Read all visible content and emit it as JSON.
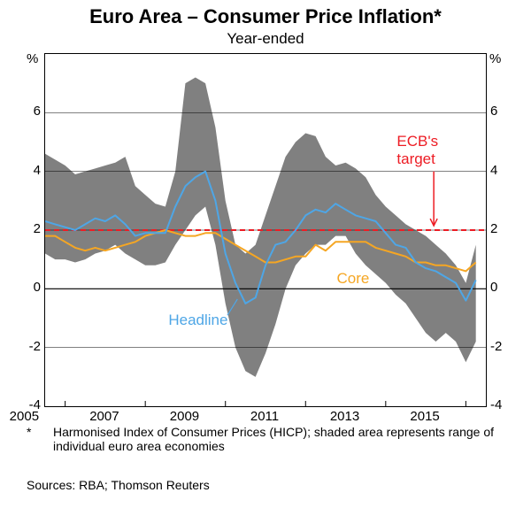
{
  "title": "Euro Area – Consumer Price Inflation*",
  "subtitle": "Year-ended",
  "footnote_marker": "*",
  "footnote": "Harmonised Index of Consumer Prices (HICP); shaded area represents range of individual euro area economies",
  "sources": "Sources:  RBA; Thomson Reuters",
  "y_unit": "%",
  "chart": {
    "type": "line",
    "xlim": [
      2004.5,
      2015.5
    ],
    "ylim": [
      -4,
      8
    ],
    "ytick_step": 2,
    "yticks": [
      -4,
      -2,
      0,
      2,
      4,
      6
    ],
    "xticks": [
      2005,
      2007,
      2009,
      2011,
      2013,
      2015
    ],
    "background_color": "#ffffff",
    "grid_color": "#000000",
    "grid_width": 0.5,
    "zero_line_color": "#000000",
    "zero_line_width": 1.2,
    "band_color": "#808080",
    "band_opacity": 1.0,
    "headline_color": "#4ea6e6",
    "headline_width": 2,
    "core_color": "#f5a623",
    "core_width": 2,
    "target_color": "#ed1c24",
    "target_width": 2,
    "target_dash": "6,4",
    "target_value": 2.0,
    "arrow_color": "#ed1c24",
    "headline_label": "Headline",
    "headline_label_color": "#4ea6e6",
    "core_label": "Core",
    "core_label_color": "#f5a623",
    "target_label": "ECB's\ntarget",
    "target_label_color": "#ed1c24",
    "band_upper": [
      [
        2004.5,
        4.6
      ],
      [
        2004.75,
        4.4
      ],
      [
        2005,
        4.2
      ],
      [
        2005.25,
        3.9
      ],
      [
        2005.5,
        4.0
      ],
      [
        2005.75,
        4.1
      ],
      [
        2006,
        4.2
      ],
      [
        2006.25,
        4.3
      ],
      [
        2006.5,
        4.5
      ],
      [
        2006.75,
        3.5
      ],
      [
        2007,
        3.2
      ],
      [
        2007.25,
        2.9
      ],
      [
        2007.5,
        2.8
      ],
      [
        2007.75,
        4.0
      ],
      [
        2008,
        7.0
      ],
      [
        2008.25,
        7.2
      ],
      [
        2008.5,
        7.0
      ],
      [
        2008.75,
        5.5
      ],
      [
        2009,
        3.0
      ],
      [
        2009.25,
        1.5
      ],
      [
        2009.5,
        1.2
      ],
      [
        2009.75,
        1.5
      ],
      [
        2010,
        2.5
      ],
      [
        2010.25,
        3.5
      ],
      [
        2010.5,
        4.5
      ],
      [
        2010.75,
        5.0
      ],
      [
        2011,
        5.3
      ],
      [
        2011.25,
        5.2
      ],
      [
        2011.5,
        4.5
      ],
      [
        2011.75,
        4.2
      ],
      [
        2012,
        4.3
      ],
      [
        2012.25,
        4.1
      ],
      [
        2012.5,
        3.8
      ],
      [
        2012.75,
        3.2
      ],
      [
        2013,
        2.8
      ],
      [
        2013.25,
        2.5
      ],
      [
        2013.5,
        2.2
      ],
      [
        2013.75,
        2.0
      ],
      [
        2014,
        1.8
      ],
      [
        2014.25,
        1.5
      ],
      [
        2014.5,
        1.2
      ],
      [
        2014.75,
        0.8
      ],
      [
        2015,
        0.2
      ],
      [
        2015.25,
        1.5
      ]
    ],
    "band_lower": [
      [
        2004.5,
        1.2
      ],
      [
        2004.75,
        1.0
      ],
      [
        2005,
        1.0
      ],
      [
        2005.25,
        0.9
      ],
      [
        2005.5,
        1.0
      ],
      [
        2005.75,
        1.2
      ],
      [
        2006,
        1.3
      ],
      [
        2006.25,
        1.5
      ],
      [
        2006.5,
        1.2
      ],
      [
        2006.75,
        1.0
      ],
      [
        2007,
        0.8
      ],
      [
        2007.25,
        0.8
      ],
      [
        2007.5,
        0.9
      ],
      [
        2007.75,
        1.5
      ],
      [
        2008,
        2.0
      ],
      [
        2008.25,
        2.5
      ],
      [
        2008.5,
        2.8
      ],
      [
        2008.75,
        1.5
      ],
      [
        2009,
        -0.5
      ],
      [
        2009.25,
        -2.0
      ],
      [
        2009.5,
        -2.8
      ],
      [
        2009.75,
        -3.0
      ],
      [
        2010,
        -2.2
      ],
      [
        2010.25,
        -1.2
      ],
      [
        2010.5,
        0.0
      ],
      [
        2010.75,
        0.8
      ],
      [
        2011,
        1.2
      ],
      [
        2011.25,
        1.5
      ],
      [
        2011.5,
        1.5
      ],
      [
        2011.75,
        1.8
      ],
      [
        2012,
        1.8
      ],
      [
        2012.25,
        1.2
      ],
      [
        2012.5,
        0.8
      ],
      [
        2012.75,
        0.5
      ],
      [
        2013,
        0.2
      ],
      [
        2013.25,
        -0.2
      ],
      [
        2013.5,
        -0.5
      ],
      [
        2013.75,
        -1.0
      ],
      [
        2014,
        -1.5
      ],
      [
        2014.25,
        -1.8
      ],
      [
        2014.5,
        -1.5
      ],
      [
        2014.75,
        -1.8
      ],
      [
        2015,
        -2.5
      ],
      [
        2015.25,
        -1.8
      ]
    ],
    "headline": [
      [
        2004.5,
        2.3
      ],
      [
        2004.75,
        2.2
      ],
      [
        2005,
        2.1
      ],
      [
        2005.25,
        2.0
      ],
      [
        2005.5,
        2.2
      ],
      [
        2005.75,
        2.4
      ],
      [
        2006,
        2.3
      ],
      [
        2006.25,
        2.5
      ],
      [
        2006.5,
        2.2
      ],
      [
        2006.75,
        1.8
      ],
      [
        2007,
        1.9
      ],
      [
        2007.25,
        1.9
      ],
      [
        2007.5,
        1.9
      ],
      [
        2007.75,
        2.8
      ],
      [
        2008,
        3.5
      ],
      [
        2008.25,
        3.8
      ],
      [
        2008.5,
        4.0
      ],
      [
        2008.75,
        3.0
      ],
      [
        2009,
        1.2
      ],
      [
        2009.25,
        0.2
      ],
      [
        2009.5,
        -0.5
      ],
      [
        2009.75,
        -0.3
      ],
      [
        2010,
        0.8
      ],
      [
        2010.25,
        1.5
      ],
      [
        2010.5,
        1.6
      ],
      [
        2010.75,
        2.0
      ],
      [
        2011,
        2.5
      ],
      [
        2011.25,
        2.7
      ],
      [
        2011.5,
        2.6
      ],
      [
        2011.75,
        2.9
      ],
      [
        2012,
        2.7
      ],
      [
        2012.25,
        2.5
      ],
      [
        2012.5,
        2.4
      ],
      [
        2012.75,
        2.3
      ],
      [
        2013,
        1.9
      ],
      [
        2013.25,
        1.5
      ],
      [
        2013.5,
        1.4
      ],
      [
        2013.75,
        0.9
      ],
      [
        2014,
        0.7
      ],
      [
        2014.25,
        0.6
      ],
      [
        2014.5,
        0.4
      ],
      [
        2014.75,
        0.2
      ],
      [
        2015,
        -0.4
      ],
      [
        2015.25,
        0.3
      ]
    ],
    "core": [
      [
        2004.5,
        1.8
      ],
      [
        2004.75,
        1.8
      ],
      [
        2005,
        1.6
      ],
      [
        2005.25,
        1.4
      ],
      [
        2005.5,
        1.3
      ],
      [
        2005.75,
        1.4
      ],
      [
        2006,
        1.3
      ],
      [
        2006.25,
        1.4
      ],
      [
        2006.5,
        1.5
      ],
      [
        2006.75,
        1.6
      ],
      [
        2007,
        1.8
      ],
      [
        2007.25,
        1.9
      ],
      [
        2007.5,
        2.0
      ],
      [
        2007.75,
        1.9
      ],
      [
        2008,
        1.8
      ],
      [
        2008.25,
        1.8
      ],
      [
        2008.5,
        1.9
      ],
      [
        2008.75,
        1.9
      ],
      [
        2009,
        1.7
      ],
      [
        2009.25,
        1.5
      ],
      [
        2009.5,
        1.3
      ],
      [
        2009.75,
        1.1
      ],
      [
        2010,
        0.9
      ],
      [
        2010.25,
        0.9
      ],
      [
        2010.5,
        1.0
      ],
      [
        2010.75,
        1.1
      ],
      [
        2011,
        1.1
      ],
      [
        2011.25,
        1.5
      ],
      [
        2011.5,
        1.3
      ],
      [
        2011.75,
        1.6
      ],
      [
        2012,
        1.6
      ],
      [
        2012.25,
        1.6
      ],
      [
        2012.5,
        1.6
      ],
      [
        2012.75,
        1.4
      ],
      [
        2013,
        1.3
      ],
      [
        2013.25,
        1.2
      ],
      [
        2013.5,
        1.1
      ],
      [
        2013.75,
        0.9
      ],
      [
        2014,
        0.9
      ],
      [
        2014.25,
        0.8
      ],
      [
        2014.5,
        0.8
      ],
      [
        2014.75,
        0.7
      ],
      [
        2015,
        0.6
      ],
      [
        2015.25,
        0.9
      ]
    ]
  }
}
